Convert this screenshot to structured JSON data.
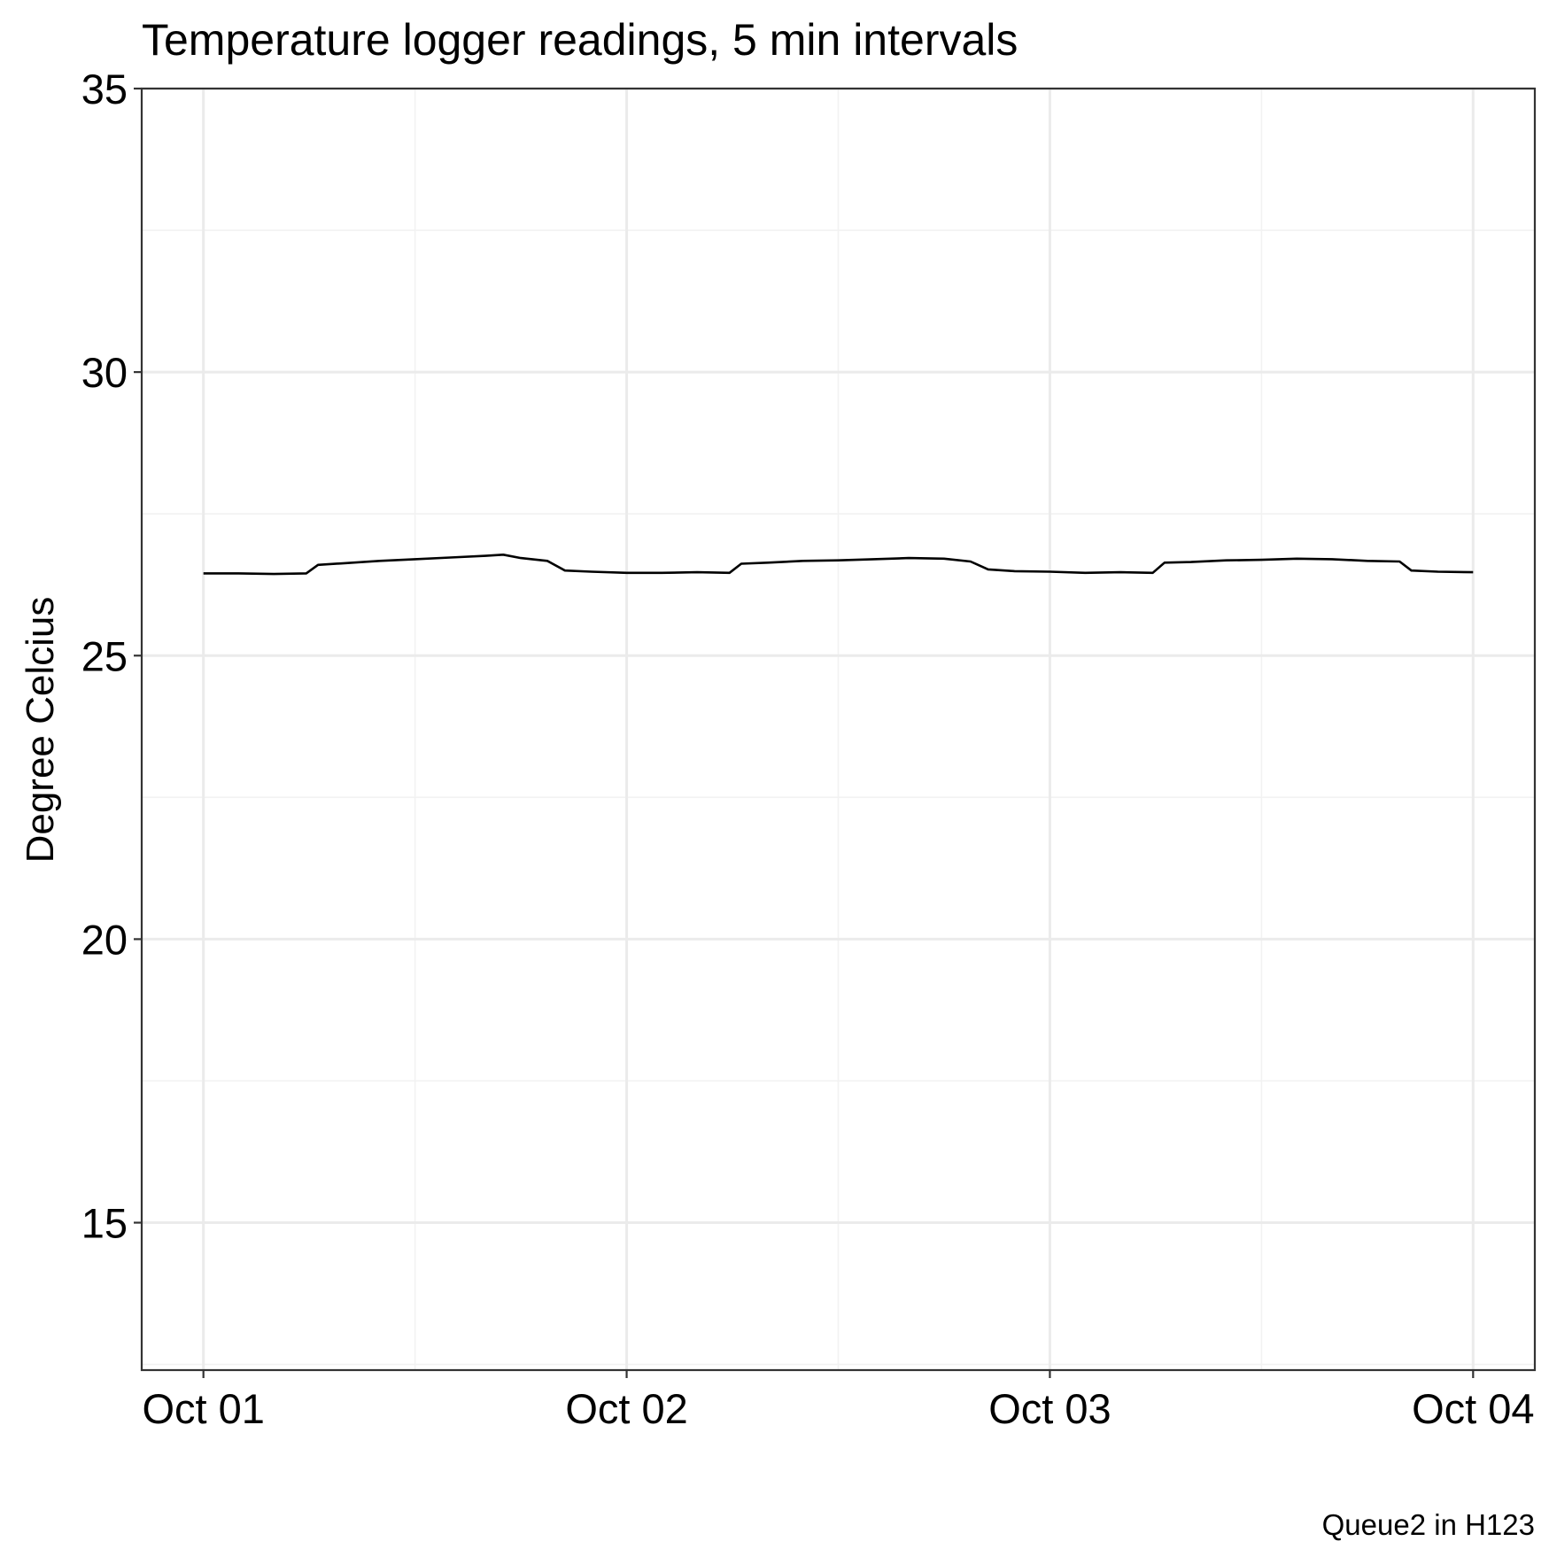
{
  "chart_data": {
    "type": "line",
    "title": "Temperature logger readings, 5 min intervals",
    "xlabel": "",
    "ylabel": "Degree Celcius",
    "caption": "Queue2 in H123",
    "x_axis": {
      "type": "date",
      "range": [
        "2023-09-30T20:30",
        "2023-10-04T03:30"
      ],
      "ticks": [
        {
          "value": "2023-10-01T00:00",
          "label": "Oct 01"
        },
        {
          "value": "2023-10-02T00:00",
          "label": "Oct 02"
        },
        {
          "value": "2023-10-03T00:00",
          "label": "Oct 03"
        },
        {
          "value": "2023-10-04T00:00",
          "label": "Oct 04"
        }
      ]
    },
    "y_axis": {
      "range": [
        12.4,
        35.0
      ],
      "ticks": [
        {
          "value": 15,
          "label": "15"
        },
        {
          "value": 20,
          "label": "20"
        },
        {
          "value": 25,
          "label": "25"
        },
        {
          "value": 30,
          "label": "30"
        },
        {
          "value": 35,
          "label": "35"
        }
      ]
    },
    "grid": true,
    "legend": "none",
    "line_color": "#000000",
    "series": [
      {
        "x": [
          "2023-10-01T00:00",
          "2023-10-01T02:00",
          "2023-10-01T04:00",
          "2023-10-01T05:50",
          "2023-10-01T06:30",
          "2023-10-01T08:00",
          "2023-10-01T10:00",
          "2023-10-01T12:00",
          "2023-10-01T14:00",
          "2023-10-01T16:00",
          "2023-10-01T17:00",
          "2023-10-01T18:00",
          "2023-10-01T19:30",
          "2023-10-01T20:30",
          "2023-10-01T22:00",
          "2023-10-02T00:00",
          "2023-10-02T02:00",
          "2023-10-02T04:00",
          "2023-10-02T05:50",
          "2023-10-02T06:30",
          "2023-10-02T08:00",
          "2023-10-02T10:00",
          "2023-10-02T12:00",
          "2023-10-02T14:00",
          "2023-10-02T16:00",
          "2023-10-02T18:00",
          "2023-10-02T19:30",
          "2023-10-02T20:30",
          "2023-10-02T22:00",
          "2023-10-03T00:00",
          "2023-10-03T02:00",
          "2023-10-03T04:00",
          "2023-10-03T05:50",
          "2023-10-03T06:30",
          "2023-10-03T08:00",
          "2023-10-03T10:00",
          "2023-10-03T12:00",
          "2023-10-03T14:00",
          "2023-10-03T16:00",
          "2023-10-03T18:00",
          "2023-10-03T19:50",
          "2023-10-03T20:30",
          "2023-10-03T22:00",
          "2023-10-04T00:00"
        ],
        "values": [
          26.45,
          26.45,
          26.44,
          26.45,
          26.6,
          26.63,
          26.67,
          26.7,
          26.73,
          26.76,
          26.78,
          26.72,
          26.67,
          26.5,
          26.48,
          26.46,
          26.46,
          26.47,
          26.46,
          26.62,
          26.64,
          26.67,
          26.68,
          26.7,
          26.72,
          26.71,
          26.66,
          26.52,
          26.49,
          26.48,
          26.46,
          26.47,
          26.46,
          26.64,
          26.65,
          26.68,
          26.69,
          26.71,
          26.7,
          26.67,
          26.66,
          26.5,
          26.48,
          26.47
        ]
      }
    ]
  }
}
